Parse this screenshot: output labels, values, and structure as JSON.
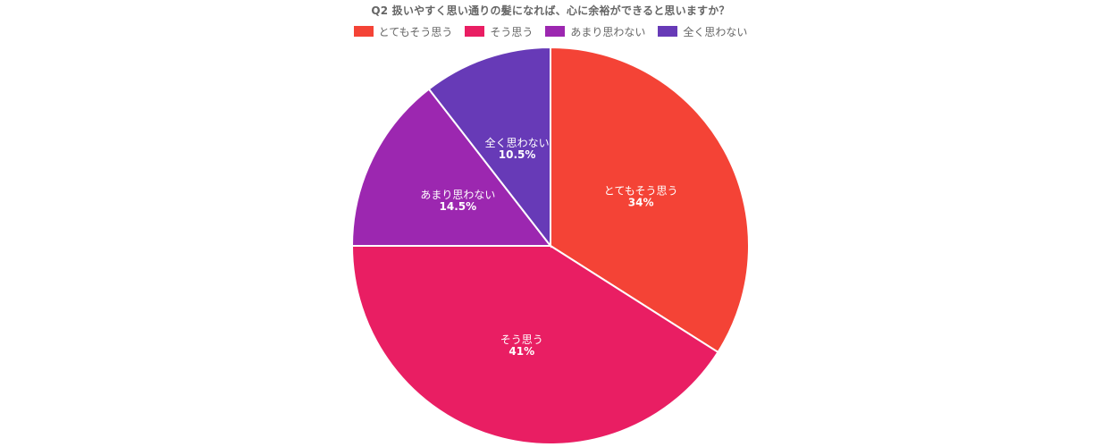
{
  "chart_data": {
    "type": "pie",
    "title": "Q2 扱いやすく思い通りの髪になれば、心に余裕ができると思いますか？",
    "legend_position": "top-center",
    "categories": [
      "とてもそう思う",
      "そう思う",
      "あまり思わない",
      "全く思わない"
    ],
    "values": [
      34,
      41,
      14.5,
      10.5
    ],
    "value_labels": [
      "34%",
      "41%",
      "14.5%",
      "10.5%"
    ],
    "colors": [
      "#f44336",
      "#e91e63",
      "#9c27b0",
      "#673ab7"
    ]
  }
}
